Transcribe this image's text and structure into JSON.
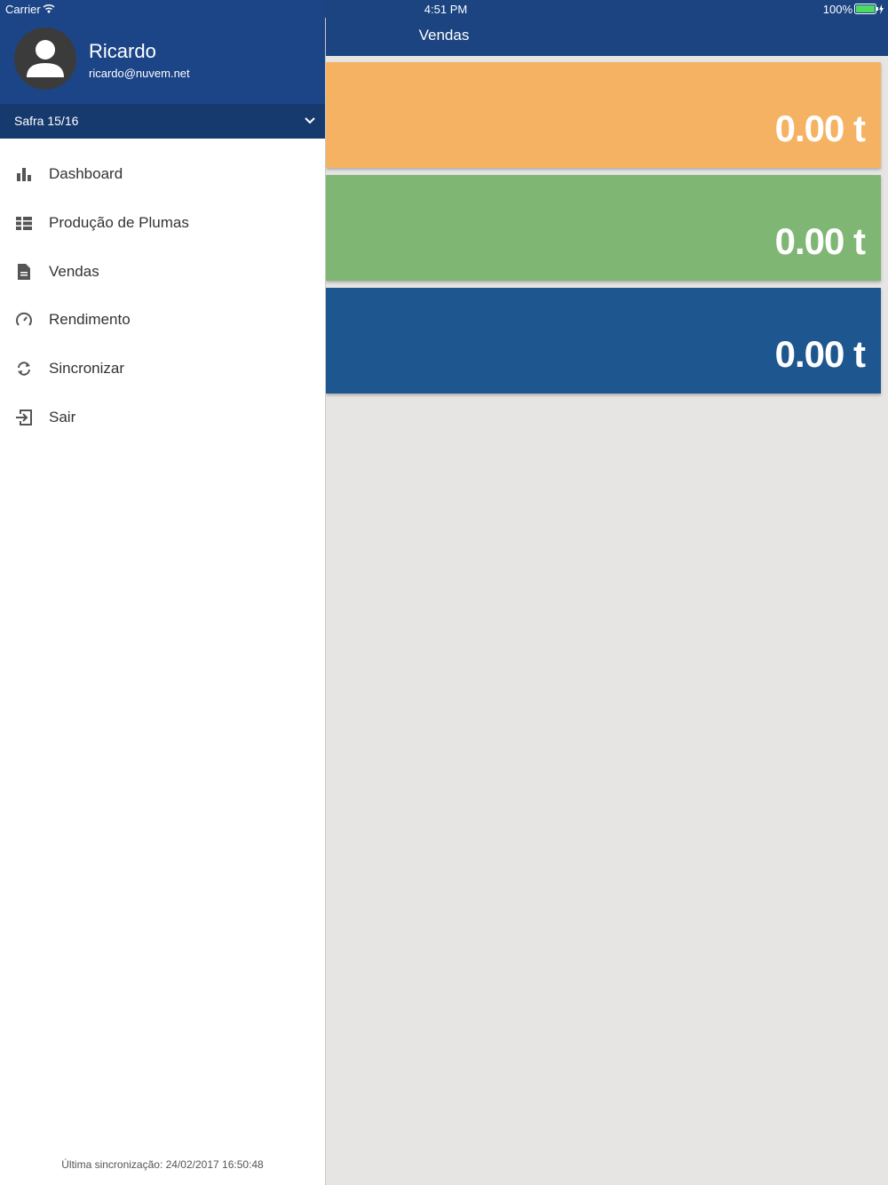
{
  "status_bar": {
    "carrier": "Carrier",
    "time": "4:51 PM",
    "battery": "100%"
  },
  "drawer": {
    "user_name": "Ricardo",
    "user_email": "ricardo@nuvem.net",
    "season": "Safra 15/16",
    "menu": [
      "Dashboard",
      "Produção de Plumas",
      "Vendas",
      "Rendimento",
      "Sincronizar",
      "Sair"
    ],
    "footer": "Última sincronização: 24/02/2017 16:50:48"
  },
  "main": {
    "title": "Vendas",
    "cards": [
      "0.00 t",
      "0.00 t",
      "0.00 t"
    ]
  }
}
